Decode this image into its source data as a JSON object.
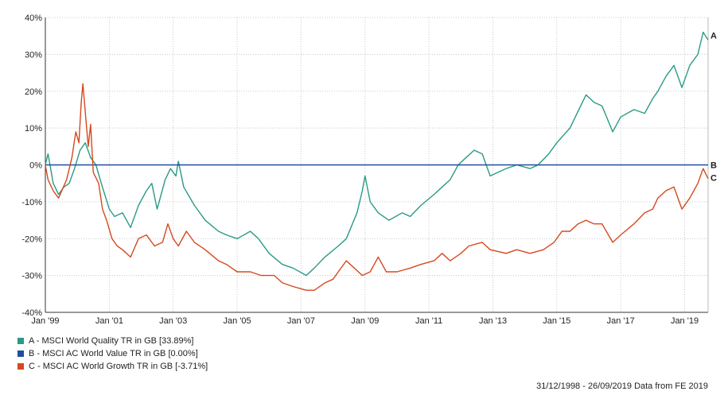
{
  "chart_data": {
    "type": "line",
    "y_axis": {
      "min": -40,
      "max": 40,
      "step": 10,
      "tick_labels": [
        "40%",
        "30%",
        "20%",
        "10%",
        "0%",
        "-10%",
        "-20%",
        "-30%",
        "-40%"
      ]
    },
    "x_axis": {
      "min": "1999-01-01",
      "max": "2019-09-26",
      "ticks": [
        "1999-01-01",
        "2001-01-01",
        "2003-01-01",
        "2005-01-01",
        "2007-01-01",
        "2009-01-01",
        "2011-01-01",
        "2013-01-01",
        "2015-01-01",
        "2017-01-01",
        "2019-01-01"
      ],
      "tick_labels": [
        "Jan '99",
        "Jan '01",
        "Jan '03",
        "Jan '05",
        "Jan '07",
        "Jan '09",
        "Jan '11",
        "Jan '13",
        "Jan '15",
        "Jan '17",
        "Jan '19"
      ]
    },
    "grid": true,
    "series": [
      {
        "name": "A - MSCI World Quality TR in GB [33.89%]",
        "end_label": "A",
        "color": "#2a9a86",
        "points": [
          [
            "1998-12-31",
            0
          ],
          [
            "1999-02-01",
            3
          ],
          [
            "1999-04-01",
            -5
          ],
          [
            "1999-06-01",
            -8
          ],
          [
            "1999-08-01",
            -6
          ],
          [
            "1999-10-01",
            -5
          ],
          [
            "1999-12-01",
            -1
          ],
          [
            "2000-02-01",
            4
          ],
          [
            "2000-04-01",
            6
          ],
          [
            "2000-06-01",
            2
          ],
          [
            "2000-08-01",
            0
          ],
          [
            "2000-10-01",
            -5
          ],
          [
            "2001-01-01",
            -12
          ],
          [
            "2001-03-01",
            -14
          ],
          [
            "2001-06-01",
            -13
          ],
          [
            "2001-09-01",
            -17
          ],
          [
            "2001-12-01",
            -11
          ],
          [
            "2002-03-01",
            -7
          ],
          [
            "2002-05-01",
            -5
          ],
          [
            "2002-07-01",
            -12
          ],
          [
            "2002-10-01",
            -4
          ],
          [
            "2002-12-01",
            -1
          ],
          [
            "2003-02-01",
            -3
          ],
          [
            "2003-03-01",
            1
          ],
          [
            "2003-05-01",
            -6
          ],
          [
            "2003-09-01",
            -11
          ],
          [
            "2004-01-01",
            -15
          ],
          [
            "2004-06-01",
            -18
          ],
          [
            "2004-09-01",
            -19
          ],
          [
            "2005-01-01",
            -20
          ],
          [
            "2005-06-01",
            -18
          ],
          [
            "2005-09-01",
            -20
          ],
          [
            "2006-01-01",
            -24
          ],
          [
            "2006-06-01",
            -27
          ],
          [
            "2006-10-01",
            -28
          ],
          [
            "2007-03-01",
            -30
          ],
          [
            "2007-06-01",
            -28
          ],
          [
            "2007-10-01",
            -25
          ],
          [
            "2008-03-01",
            -22
          ],
          [
            "2008-06-01",
            -20
          ],
          [
            "2008-10-01",
            -13
          ],
          [
            "2008-12-01",
            -7
          ],
          [
            "2009-01-01",
            -3
          ],
          [
            "2009-03-01",
            -10
          ],
          [
            "2009-06-01",
            -13
          ],
          [
            "2009-10-01",
            -15
          ],
          [
            "2010-03-01",
            -13
          ],
          [
            "2010-06-01",
            -14
          ],
          [
            "2010-10-01",
            -11
          ],
          [
            "2011-03-01",
            -8
          ],
          [
            "2011-06-01",
            -6
          ],
          [
            "2011-09-01",
            -4
          ],
          [
            "2011-12-01",
            0
          ],
          [
            "2012-03-01",
            2
          ],
          [
            "2012-06-01",
            4
          ],
          [
            "2012-09-01",
            3
          ],
          [
            "2012-12-01",
            -3
          ],
          [
            "2013-03-01",
            -2
          ],
          [
            "2013-06-01",
            -1
          ],
          [
            "2013-10-01",
            0
          ],
          [
            "2014-03-01",
            -1
          ],
          [
            "2014-06-01",
            0
          ],
          [
            "2014-10-01",
            3
          ],
          [
            "2015-01-01",
            6
          ],
          [
            "2015-06-01",
            10
          ],
          [
            "2015-10-01",
            16
          ],
          [
            "2015-12-01",
            19
          ],
          [
            "2016-03-01",
            17
          ],
          [
            "2016-06-01",
            16
          ],
          [
            "2016-10-01",
            9
          ],
          [
            "2017-01-01",
            13
          ],
          [
            "2017-06-01",
            15
          ],
          [
            "2017-10-01",
            14
          ],
          [
            "2018-01-01",
            18
          ],
          [
            "2018-03-01",
            20
          ],
          [
            "2018-06-01",
            24
          ],
          [
            "2018-09-01",
            27
          ],
          [
            "2018-12-01",
            21
          ],
          [
            "2019-03-01",
            27
          ],
          [
            "2019-06-01",
            30
          ],
          [
            "2019-08-01",
            36
          ],
          [
            "2019-09-26",
            33.89
          ]
        ]
      },
      {
        "name": "B - MSCI AC World Value TR in GB [0.00%]",
        "end_label": "B",
        "color": "#1f4e9e",
        "points": [
          [
            "1998-12-31",
            0
          ],
          [
            "2019-09-26",
            0
          ]
        ]
      },
      {
        "name": "C - MSCI AC World Growth TR in GB [-3.71%]",
        "end_label": "C",
        "color": "#d6481f",
        "points": [
          [
            "1998-12-31",
            0
          ],
          [
            "1999-02-01",
            -4
          ],
          [
            "1999-04-01",
            -7
          ],
          [
            "1999-06-01",
            -9
          ],
          [
            "1999-09-01",
            -4
          ],
          [
            "1999-11-01",
            2
          ],
          [
            "1999-12-15",
            9
          ],
          [
            "2000-01-20",
            6
          ],
          [
            "2000-02-15",
            17
          ],
          [
            "2000-03-05",
            22
          ],
          [
            "2000-04-10",
            12
          ],
          [
            "2000-05-05",
            5
          ],
          [
            "2000-06-01",
            11
          ],
          [
            "2000-07-01",
            -2
          ],
          [
            "2000-09-01",
            -5
          ],
          [
            "2000-10-15",
            -12
          ],
          [
            "2000-12-01",
            -15
          ],
          [
            "2001-02-01",
            -20
          ],
          [
            "2001-04-01",
            -22
          ],
          [
            "2001-06-01",
            -23
          ],
          [
            "2001-09-01",
            -25
          ],
          [
            "2001-12-01",
            -20
          ],
          [
            "2002-03-01",
            -19
          ],
          [
            "2002-06-01",
            -22
          ],
          [
            "2002-09-01",
            -21
          ],
          [
            "2002-11-01",
            -16
          ],
          [
            "2003-01-01",
            -20
          ],
          [
            "2003-03-01",
            -22
          ],
          [
            "2003-06-01",
            -18
          ],
          [
            "2003-09-01",
            -21
          ],
          [
            "2004-01-01",
            -23
          ],
          [
            "2004-06-01",
            -26
          ],
          [
            "2004-09-01",
            -27
          ],
          [
            "2005-01-01",
            -29
          ],
          [
            "2005-06-01",
            -29
          ],
          [
            "2005-10-01",
            -30
          ],
          [
            "2006-03-01",
            -30
          ],
          [
            "2006-06-01",
            -32
          ],
          [
            "2006-10-01",
            -33
          ],
          [
            "2007-03-01",
            -34
          ],
          [
            "2007-06-01",
            -34
          ],
          [
            "2007-10-01",
            -32
          ],
          [
            "2008-01-01",
            -31
          ],
          [
            "2008-03-01",
            -29
          ],
          [
            "2008-06-01",
            -26
          ],
          [
            "2008-09-01",
            -28
          ],
          [
            "2008-12-01",
            -30
          ],
          [
            "2009-03-01",
            -29
          ],
          [
            "2009-06-01",
            -25
          ],
          [
            "2009-09-01",
            -29
          ],
          [
            "2010-01-01",
            -29
          ],
          [
            "2010-06-01",
            -28
          ],
          [
            "2010-10-01",
            -27
          ],
          [
            "2011-03-01",
            -26
          ],
          [
            "2011-06-01",
            -24
          ],
          [
            "2011-09-01",
            -26
          ],
          [
            "2012-01-01",
            -24
          ],
          [
            "2012-04-01",
            -22
          ],
          [
            "2012-09-01",
            -21
          ],
          [
            "2012-12-01",
            -23
          ],
          [
            "2013-06-01",
            -24
          ],
          [
            "2013-10-01",
            -23
          ],
          [
            "2014-03-01",
            -24
          ],
          [
            "2014-08-01",
            -23
          ],
          [
            "2014-12-01",
            -21
          ],
          [
            "2015-03-01",
            -18
          ],
          [
            "2015-06-01",
            -18
          ],
          [
            "2015-09-01",
            -16
          ],
          [
            "2015-12-01",
            -15
          ],
          [
            "2016-03-01",
            -16
          ],
          [
            "2016-06-01",
            -16
          ],
          [
            "2016-10-01",
            -21
          ],
          [
            "2017-01-01",
            -19
          ],
          [
            "2017-06-01",
            -16
          ],
          [
            "2017-10-01",
            -13
          ],
          [
            "2018-01-01",
            -12
          ],
          [
            "2018-03-01",
            -9
          ],
          [
            "2018-06-01",
            -7
          ],
          [
            "2018-09-01",
            -6
          ],
          [
            "2018-12-01",
            -12
          ],
          [
            "2019-03-01",
            -9
          ],
          [
            "2019-06-01",
            -5
          ],
          [
            "2019-08-01",
            -1
          ],
          [
            "2019-09-26",
            -3.71
          ]
        ]
      }
    ]
  },
  "legend": [
    {
      "label": "A - MSCI World Quality TR in GB [33.89%]",
      "color": "#2a9a86"
    },
    {
      "label": "B - MSCI AC World Value TR in GB [0.00%]",
      "color": "#1f4e9e"
    },
    {
      "label": "C - MSCI AC World Growth TR in GB [-3.71%]",
      "color": "#d6481f"
    }
  ],
  "source_note": "31/12/1998 - 26/09/2019 Data from FE 2019",
  "colors": {
    "grid": "#c8c8c8",
    "axis": "#333333"
  }
}
